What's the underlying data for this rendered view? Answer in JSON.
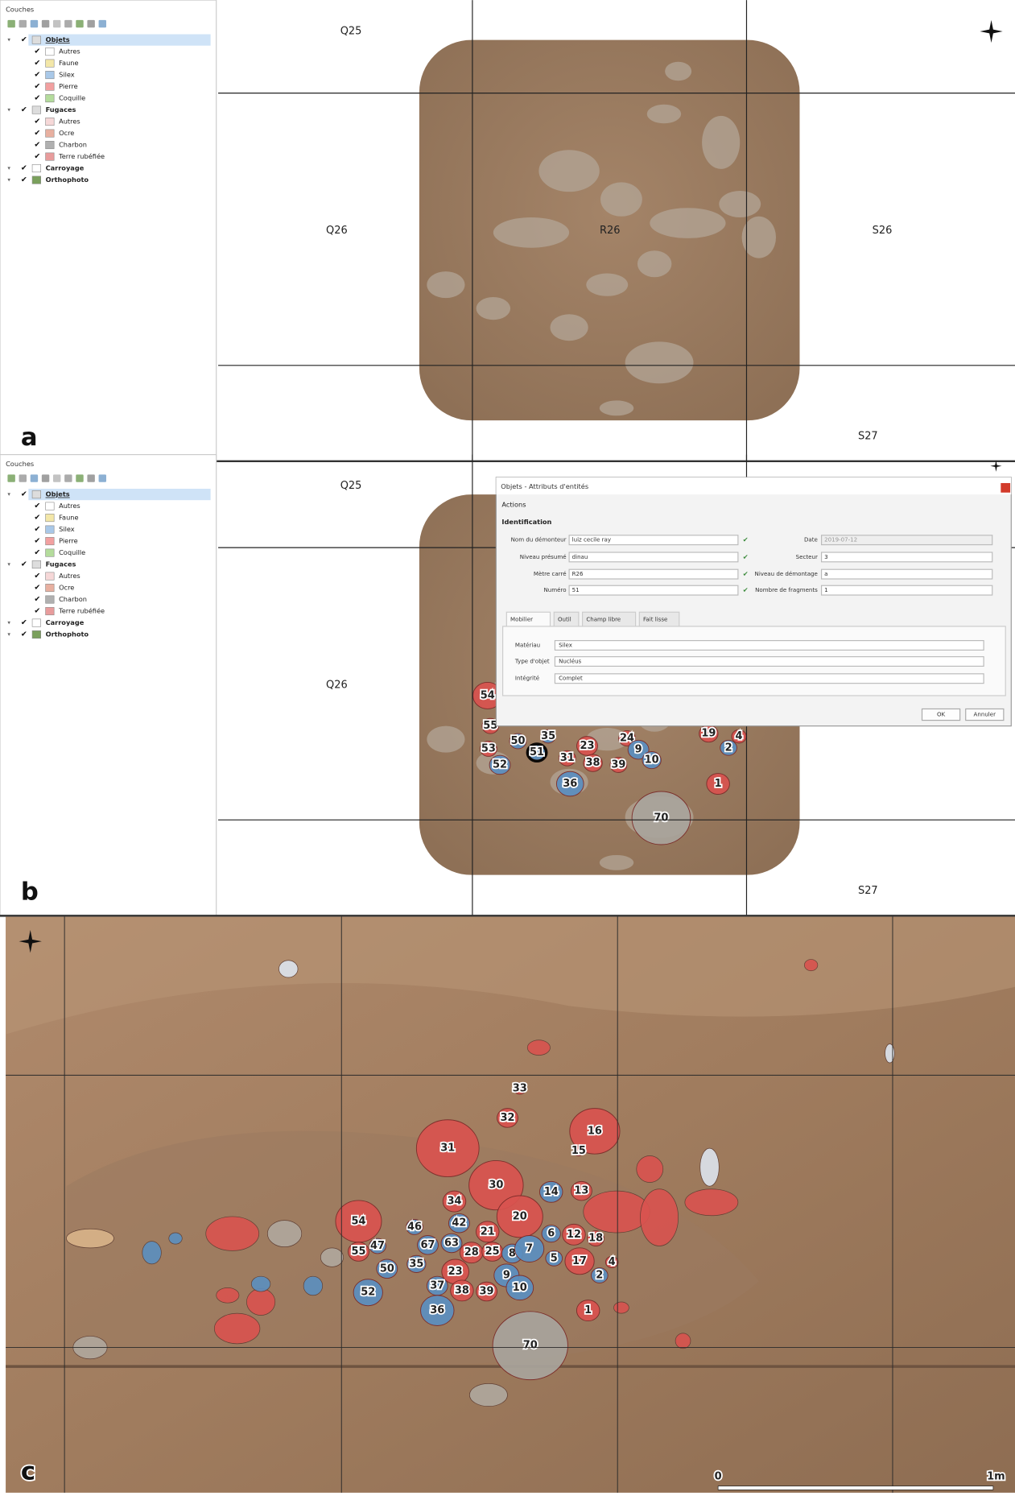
{
  "panel_a": {
    "letter": "a",
    "layers": {
      "title": "Couches",
      "groups": [
        {
          "name": "Objets",
          "items": [
            "Autres",
            "Faune",
            "Silex",
            "Pierre",
            "Coquille"
          ],
          "colors": [
            "#ffffff",
            "#f3e7a8",
            "#a9c8e8",
            "#f2a0a0",
            "#b4dc9c"
          ]
        },
        {
          "name": "Fugaces",
          "items": [
            "Autres",
            "Ocre",
            "Charbon",
            "Terre rubéfiée"
          ],
          "colors": [
            "#f6d8d8",
            "#e8b0a0",
            "#b0b0b0",
            "#e89c9c"
          ]
        }
      ],
      "others": [
        "Carroyage",
        "Orthophoto"
      ]
    },
    "grid_labels": [
      "Q25",
      "Q26",
      "R26",
      "S26",
      "S27"
    ]
  },
  "panel_b": {
    "letter": "b",
    "layers": {
      "title": "Couches",
      "groups": [
        {
          "name": "Objets",
          "items": [
            "Autres",
            "Faune",
            "Silex",
            "Pierre",
            "Coquille"
          ],
          "colors": [
            "#ffffff",
            "#f3e7a8",
            "#a9c8e8",
            "#f2a0a0",
            "#b4dc9c"
          ]
        },
        {
          "name": "Fugaces",
          "items": [
            "Autres",
            "Ocre",
            "Charbon",
            "Terre rubéfiée"
          ],
          "colors": [
            "#f6d8d8",
            "#e8b0a0",
            "#b0b0b0",
            "#e89c9c"
          ]
        }
      ],
      "others": [
        "Carroyage",
        "Orthophoto"
      ]
    },
    "grid_labels": [
      "Q25",
      "Q26",
      "S27"
    ],
    "objects": [
      {
        "label": "54",
        "color": "#d9534f"
      },
      {
        "label": "55",
        "color": "#d9534f"
      },
      {
        "label": "50",
        "color": "#5b8fc0"
      },
      {
        "label": "35",
        "color": "#5b8fc0"
      },
      {
        "label": "53",
        "color": "#d9534f"
      },
      {
        "label": "52",
        "color": "#5b8fc0"
      },
      {
        "label": "51",
        "color": "#5b8fc0"
      },
      {
        "label": "23",
        "color": "#d9534f"
      },
      {
        "label": "31",
        "color": "#d9534f"
      },
      {
        "label": "38",
        "color": "#d9534f"
      },
      {
        "label": "39",
        "color": "#d9534f"
      },
      {
        "label": "24",
        "color": "#d9534f"
      },
      {
        "label": "9",
        "color": "#5b8fc0"
      },
      {
        "label": "10",
        "color": "#5b8fc0"
      },
      {
        "label": "36",
        "color": "#5b8fc0"
      },
      {
        "label": "1",
        "color": "#d9534f"
      },
      {
        "label": "70",
        "color": "#a9a49c"
      },
      {
        "label": "2",
        "color": "#5b8fc0"
      },
      {
        "label": "19",
        "color": "#d9534f"
      },
      {
        "label": "4",
        "color": "#d9534f"
      }
    ],
    "dialog": {
      "title": "Objets - Attributs d'entités",
      "menu": "Actions",
      "section": "Identification",
      "left_fields": [
        {
          "label": "Nom du démonteur",
          "value": "luiz cecile ray"
        },
        {
          "label": "Niveau présumé",
          "value": "dinau"
        },
        {
          "label": "Mètre carré",
          "value": "R26"
        },
        {
          "label": "Numéro",
          "value": "51"
        }
      ],
      "right_fields": [
        {
          "label": "Date",
          "value": "2019-07-12"
        },
        {
          "label": "Secteur",
          "value": "3"
        },
        {
          "label": "Niveau de démontage",
          "value": "a"
        },
        {
          "label": "Nombre de fragments",
          "value": "1"
        }
      ],
      "tabs": [
        "Mobilier",
        "Outil",
        "Champ libre",
        "Fait lisse"
      ],
      "tab_fields": [
        {
          "label": "Matériau",
          "value": "Silex"
        },
        {
          "label": "Type d'objet",
          "value": "Nucléus"
        },
        {
          "label": "Intégrité",
          "value": "Complet"
        }
      ],
      "buttons": [
        "OK",
        "Annuler"
      ]
    }
  },
  "panel_c": {
    "letter": "c",
    "objects": [
      {
        "label": "33",
        "color": "#d9534f"
      },
      {
        "label": "32",
        "color": "#d9534f"
      },
      {
        "label": "16",
        "color": "#d9534f"
      },
      {
        "label": "31",
        "color": "#d9534f"
      },
      {
        "label": "15",
        "color": "#d9534f"
      },
      {
        "label": "30",
        "color": "#d9534f"
      },
      {
        "label": "14",
        "color": "#5b8fc0"
      },
      {
        "label": "13",
        "color": "#d9534f"
      },
      {
        "label": "34",
        "color": "#d9534f"
      },
      {
        "label": "20",
        "color": "#d9534f"
      },
      {
        "label": "54",
        "color": "#d9534f"
      },
      {
        "label": "46",
        "color": "#5b8fc0"
      },
      {
        "label": "42",
        "color": "#5b8fc0"
      },
      {
        "label": "21",
        "color": "#d9534f"
      },
      {
        "label": "6",
        "color": "#5b8fc0"
      },
      {
        "label": "12",
        "color": "#d9534f"
      },
      {
        "label": "18",
        "color": "#d9534f"
      },
      {
        "label": "55",
        "color": "#d9534f"
      },
      {
        "label": "47",
        "color": "#5b8fc0"
      },
      {
        "label": "67",
        "color": "#5b8fc0"
      },
      {
        "label": "63",
        "color": "#5b8fc0"
      },
      {
        "label": "28",
        "color": "#d9534f"
      },
      {
        "label": "25",
        "color": "#d9534f"
      },
      {
        "label": "8",
        "color": "#5b8fc0"
      },
      {
        "label": "7",
        "color": "#5b8fc0"
      },
      {
        "label": "5",
        "color": "#5b8fc0"
      },
      {
        "label": "17",
        "color": "#d9534f"
      },
      {
        "label": "4",
        "color": "#d9534f"
      },
      {
        "label": "50",
        "color": "#5b8fc0"
      },
      {
        "label": "35",
        "color": "#5b8fc0"
      },
      {
        "label": "23",
        "color": "#d9534f"
      },
      {
        "label": "2",
        "color": "#5b8fc0"
      },
      {
        "label": "9",
        "color": "#5b8fc0"
      },
      {
        "label": "37",
        "color": "#5b8fc0"
      },
      {
        "label": "38",
        "color": "#d9534f"
      },
      {
        "label": "39",
        "color": "#d9534f"
      },
      {
        "label": "10",
        "color": "#5b8fc0"
      },
      {
        "label": "52",
        "color": "#5b8fc0"
      },
      {
        "label": "36",
        "color": "#5b8fc0"
      },
      {
        "label": "1",
        "color": "#d9534f"
      },
      {
        "label": "70",
        "color": "#a9a49c"
      }
    ],
    "scale": [
      "0",
      "1m"
    ]
  }
}
